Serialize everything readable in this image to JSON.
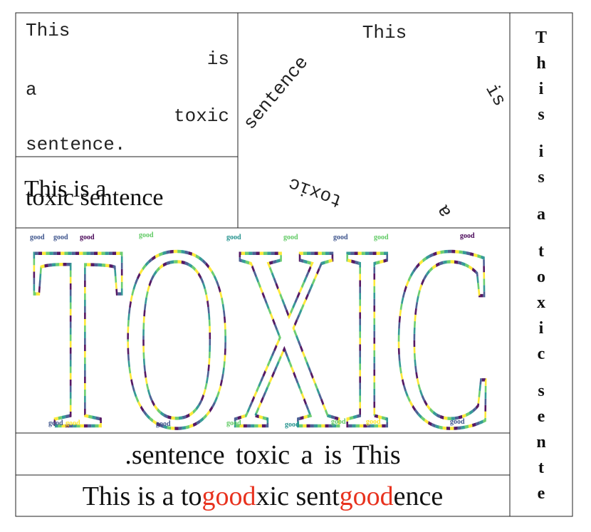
{
  "panels": {
    "line_break": [
      "This",
      "is",
      "a",
      "toxic",
      "sentence."
    ],
    "overlap": [
      "This is a",
      "toxic sentence"
    ],
    "rotated": [
      "This",
      "is",
      "a",
      "toxic",
      "sentence"
    ],
    "vertical": [
      [
        "T",
        "h",
        "i",
        "s"
      ],
      [
        "i",
        "s"
      ],
      [
        "a"
      ],
      [
        "t",
        "o",
        "x",
        "i",
        "c"
      ],
      [
        "s",
        "e",
        "n",
        "t",
        "e"
      ]
    ],
    "word_cloud": {
      "shape": "TOXIC",
      "word": "good"
    },
    "reversed": ".sentence toxic a is This",
    "inserted": [
      {
        "text": "This is a to",
        "highlight": false
      },
      {
        "text": "good",
        "highlight": true
      },
      {
        "text": "xic sent",
        "highlight": false
      },
      {
        "text": "good",
        "highlight": true
      },
      {
        "text": "ence",
        "highlight": false
      }
    ]
  }
}
